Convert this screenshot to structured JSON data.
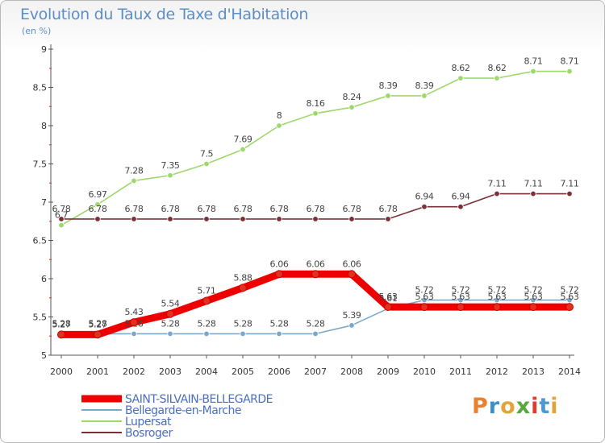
{
  "title": "Evolution du Taux de Taxe d'Habitation",
  "subtitle": "(en %)",
  "logo_text": "Proxiti",
  "logo_colors": [
    "#e9812f",
    "#3d8fc7",
    "#e1a43a",
    "#58a83c",
    "#e03b2f",
    "#4a9ad4",
    "#e1a43a"
  ],
  "chart_data": {
    "type": "line",
    "x": [
      2000,
      2001,
      2002,
      2003,
      2004,
      2005,
      2006,
      2007,
      2008,
      2009,
      2010,
      2011,
      2012,
      2013,
      2014
    ],
    "ylim": [
      5,
      9
    ],
    "yticks": [
      "5",
      "5.5",
      "6",
      "6.5",
      "7",
      "7.5",
      "8",
      "8.5",
      "9"
    ],
    "xlabel": "",
    "ylabel": "",
    "legend_position": "bottom-left",
    "series": [
      {
        "name": "Lupersat",
        "color": "#9dd86a",
        "values": [
          6.7,
          6.97,
          7.28,
          7.35,
          7.5,
          7.69,
          8,
          8.16,
          8.24,
          8.39,
          8.39,
          8.62,
          8.62,
          8.71,
          8.71
        ],
        "labels": [
          "6.7",
          "6.97",
          "7.28",
          "7.35",
          "7.5",
          "7.69",
          "8",
          "8.16",
          "8.24",
          "8.39",
          "8.39",
          "8.62",
          "8.62",
          "8.71",
          "8.71"
        ]
      },
      {
        "name": "Bosroger",
        "color": "#7a3036",
        "values": [
          6.78,
          6.78,
          6.78,
          6.78,
          6.78,
          6.78,
          6.78,
          6.78,
          6.78,
          6.78,
          6.94,
          6.94,
          7.11,
          7.11,
          7.11
        ],
        "labels": [
          "6.78",
          "6.78",
          "6.78",
          "6.78",
          "6.78",
          "6.78",
          "6.78",
          "6.78",
          "6.78",
          "6.78",
          "6.94",
          "6.94",
          "7.11",
          "7.11",
          "7.11"
        ]
      },
      {
        "name": "Bellegarde-en-Marche",
        "color": "#7aa8cc",
        "values": [
          5.28,
          5.28,
          5.28,
          5.28,
          5.28,
          5.28,
          5.28,
          5.28,
          5.39,
          5.61,
          5.72,
          5.72,
          5.72,
          5.72,
          5.72
        ],
        "labels": [
          "5.28",
          "5.28",
          "5.28",
          "5.28",
          "5.28",
          "5.28",
          "5.28",
          "5.28",
          "5.39",
          "5.61",
          "5.72",
          "5.72",
          "5.72",
          "5.72",
          "5.72"
        ]
      },
      {
        "name": "SAINT-SILVAIN-BELLEGARDE",
        "color": "#ee0000",
        "values": [
          5.27,
          5.27,
          5.43,
          5.54,
          5.71,
          5.88,
          6.06,
          6.06,
          6.06,
          5.63,
          5.63,
          5.63,
          5.63,
          5.63,
          5.63
        ],
        "labels": [
          "5.27",
          "5.27",
          "5.43",
          "5.54",
          "5.71",
          "5.88",
          "6.06",
          "6.06",
          "6.06",
          "5.63",
          "5.63",
          "5.63",
          "5.63",
          "5.63",
          "5.63"
        ]
      }
    ],
    "legend": [
      {
        "name": "SAINT-SILVAIN-BELLEGARDE",
        "color": "#ee0000"
      },
      {
        "name": "Bellegarde-en-Marche",
        "color": "#7aa8cc"
      },
      {
        "name": "Lupersat",
        "color": "#9dd86a"
      },
      {
        "name": "Bosroger",
        "color": "#7a3036"
      }
    ]
  }
}
